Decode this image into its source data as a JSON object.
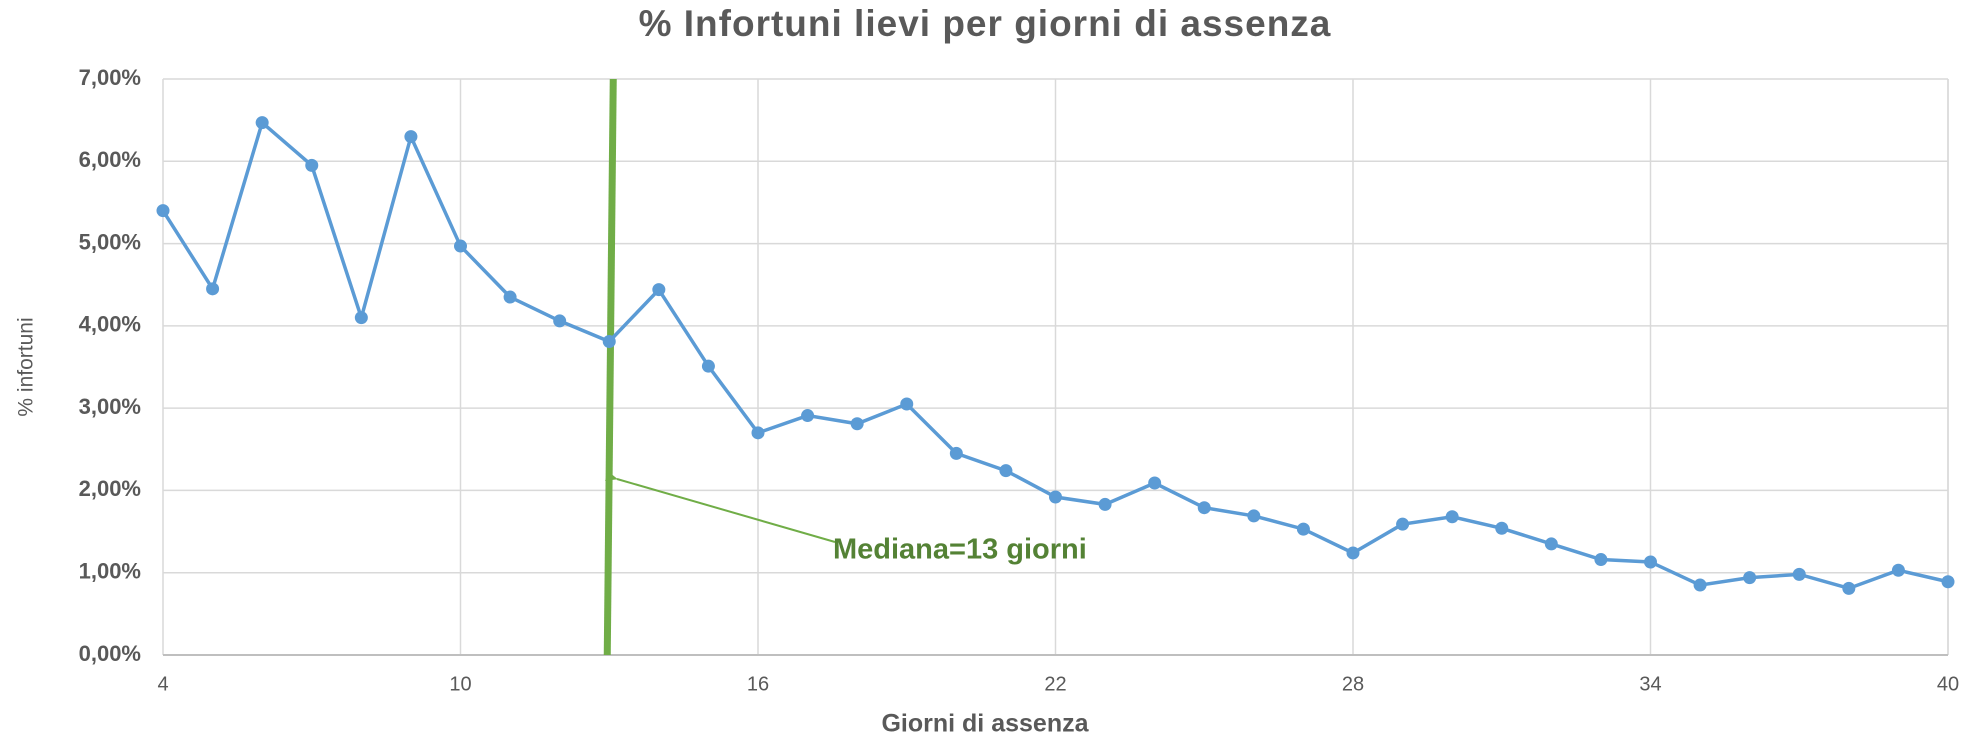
{
  "chart_data": {
    "type": "line",
    "title": "% Infortuni lievi per giorni di assenza",
    "xlabel": "Giorni di assenza",
    "ylabel": "% infortuni",
    "x": [
      4,
      5,
      6,
      7,
      8,
      9,
      10,
      11,
      12,
      13,
      14,
      15,
      16,
      17,
      18,
      19,
      20,
      21,
      22,
      23,
      24,
      25,
      26,
      27,
      28,
      29,
      30,
      31,
      32,
      33,
      34,
      35,
      36,
      37,
      38,
      39,
      40
    ],
    "series": [
      {
        "name": "% infortuni",
        "color": "#5b9bd5",
        "values": [
          5.4,
          4.45,
          6.47,
          5.95,
          4.1,
          6.3,
          4.97,
          4.35,
          4.06,
          3.81,
          4.44,
          3.51,
          2.7,
          2.91,
          2.81,
          3.05,
          2.45,
          2.24,
          1.92,
          1.83,
          2.09,
          1.79,
          1.69,
          1.53,
          1.24,
          1.59,
          1.68,
          1.54,
          1.35,
          1.16,
          1.13,
          0.85,
          0.94,
          0.98,
          0.81,
          1.03,
          0.89
        ]
      }
    ],
    "xlim": [
      4,
      40
    ],
    "xticks": [
      4,
      10,
      16,
      22,
      28,
      34,
      40
    ],
    "ylim": [
      0,
      7
    ],
    "yticks": [
      {
        "value": 0,
        "label": "0,00%"
      },
      {
        "value": 1,
        "label": "1,00%"
      },
      {
        "value": 2,
        "label": "2,00%"
      },
      {
        "value": 3,
        "label": "3,00%"
      },
      {
        "value": 4,
        "label": "4,00%"
      },
      {
        "value": 5,
        "label": "5,00%"
      },
      {
        "value": 6,
        "label": "6,00%"
      },
      {
        "value": 7,
        "label": "7,00%"
      }
    ],
    "grid": true,
    "median": {
      "x": 13,
      "color": "#70ad47",
      "annotation": "Mediana=13 giorni"
    }
  }
}
